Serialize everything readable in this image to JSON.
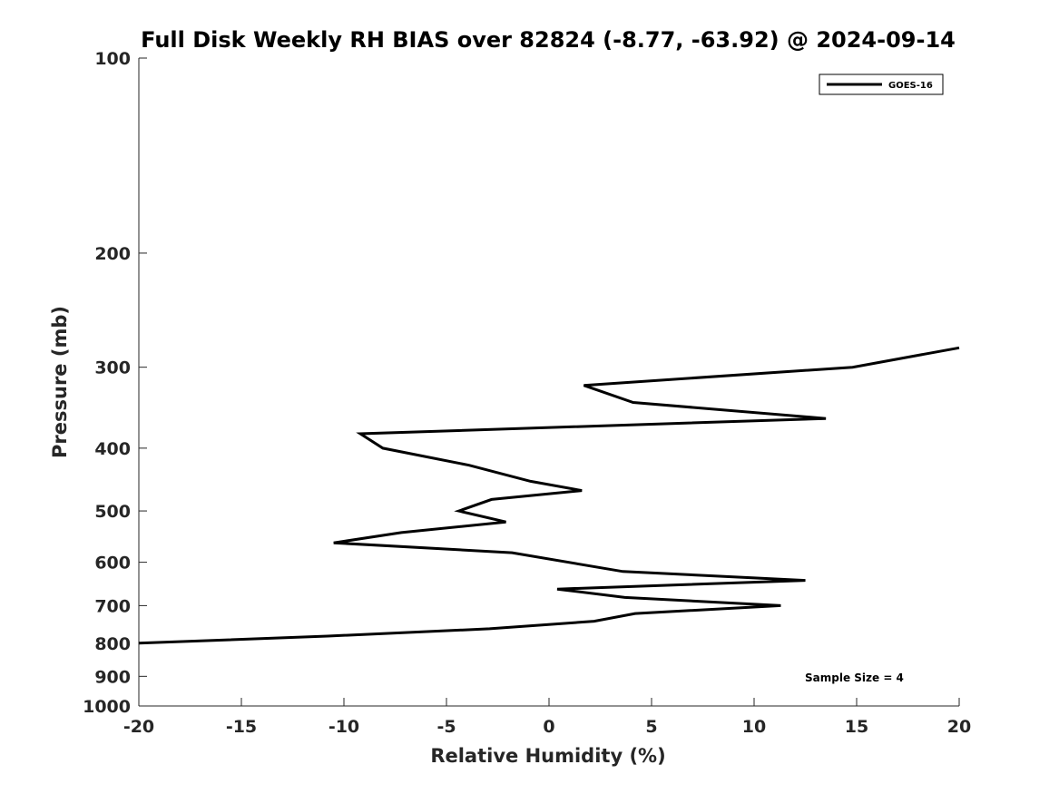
{
  "chart_data": {
    "type": "line",
    "title": "Full Disk Weekly RH BIAS over 82824 (-8.77, -63.92) @ 2024-09-14",
    "xlabel": "Relative Humidity (%)",
    "ylabel": "Pressure (mb)",
    "xlim": [
      -20,
      20
    ],
    "ylim": [
      1000,
      100
    ],
    "y_scale": "log",
    "y_reversed": true,
    "grid": false,
    "legend_placement": "top-right",
    "xticks": [
      -20,
      -15,
      -10,
      -5,
      0,
      5,
      10,
      15,
      20
    ],
    "xtick_labels": [
      "-20",
      "-15",
      "-10",
      "-5",
      "0",
      "5",
      "10",
      "15",
      "20"
    ],
    "yticks": [
      100,
      200,
      300,
      400,
      500,
      600,
      700,
      800,
      900,
      1000
    ],
    "ytick_labels": [
      "100",
      "200",
      "300",
      "400",
      "500",
      "600",
      "700",
      "800",
      "900",
      "1000"
    ],
    "series": [
      {
        "name": "GOES-16",
        "color": "#000000",
        "points": [
          {
            "x": 20.0,
            "y": 280
          },
          {
            "x": 14.8,
            "y": 300
          },
          {
            "x": 1.7,
            "y": 320
          },
          {
            "x": 4.1,
            "y": 340
          },
          {
            "x": 13.5,
            "y": 360
          },
          {
            "x": -9.2,
            "y": 380
          },
          {
            "x": -8.1,
            "y": 400
          },
          {
            "x": -3.9,
            "y": 425
          },
          {
            "x": -0.9,
            "y": 450
          },
          {
            "x": 1.6,
            "y": 465
          },
          {
            "x": -2.8,
            "y": 480
          },
          {
            "x": -4.4,
            "y": 500
          },
          {
            "x": -2.1,
            "y": 520
          },
          {
            "x": -7.2,
            "y": 540
          },
          {
            "x": -10.5,
            "y": 560
          },
          {
            "x": -1.8,
            "y": 580
          },
          {
            "x": 3.6,
            "y": 620
          },
          {
            "x": 12.5,
            "y": 640
          },
          {
            "x": 0.4,
            "y": 660
          },
          {
            "x": 3.7,
            "y": 680
          },
          {
            "x": 11.3,
            "y": 700
          },
          {
            "x": 4.2,
            "y": 720
          },
          {
            "x": 2.2,
            "y": 740
          },
          {
            "x": -2.9,
            "y": 760
          },
          {
            "x": -10.8,
            "y": 780
          },
          {
            "x": -20.0,
            "y": 800
          }
        ]
      }
    ],
    "annotations": [
      "Sample Size = 4"
    ]
  }
}
